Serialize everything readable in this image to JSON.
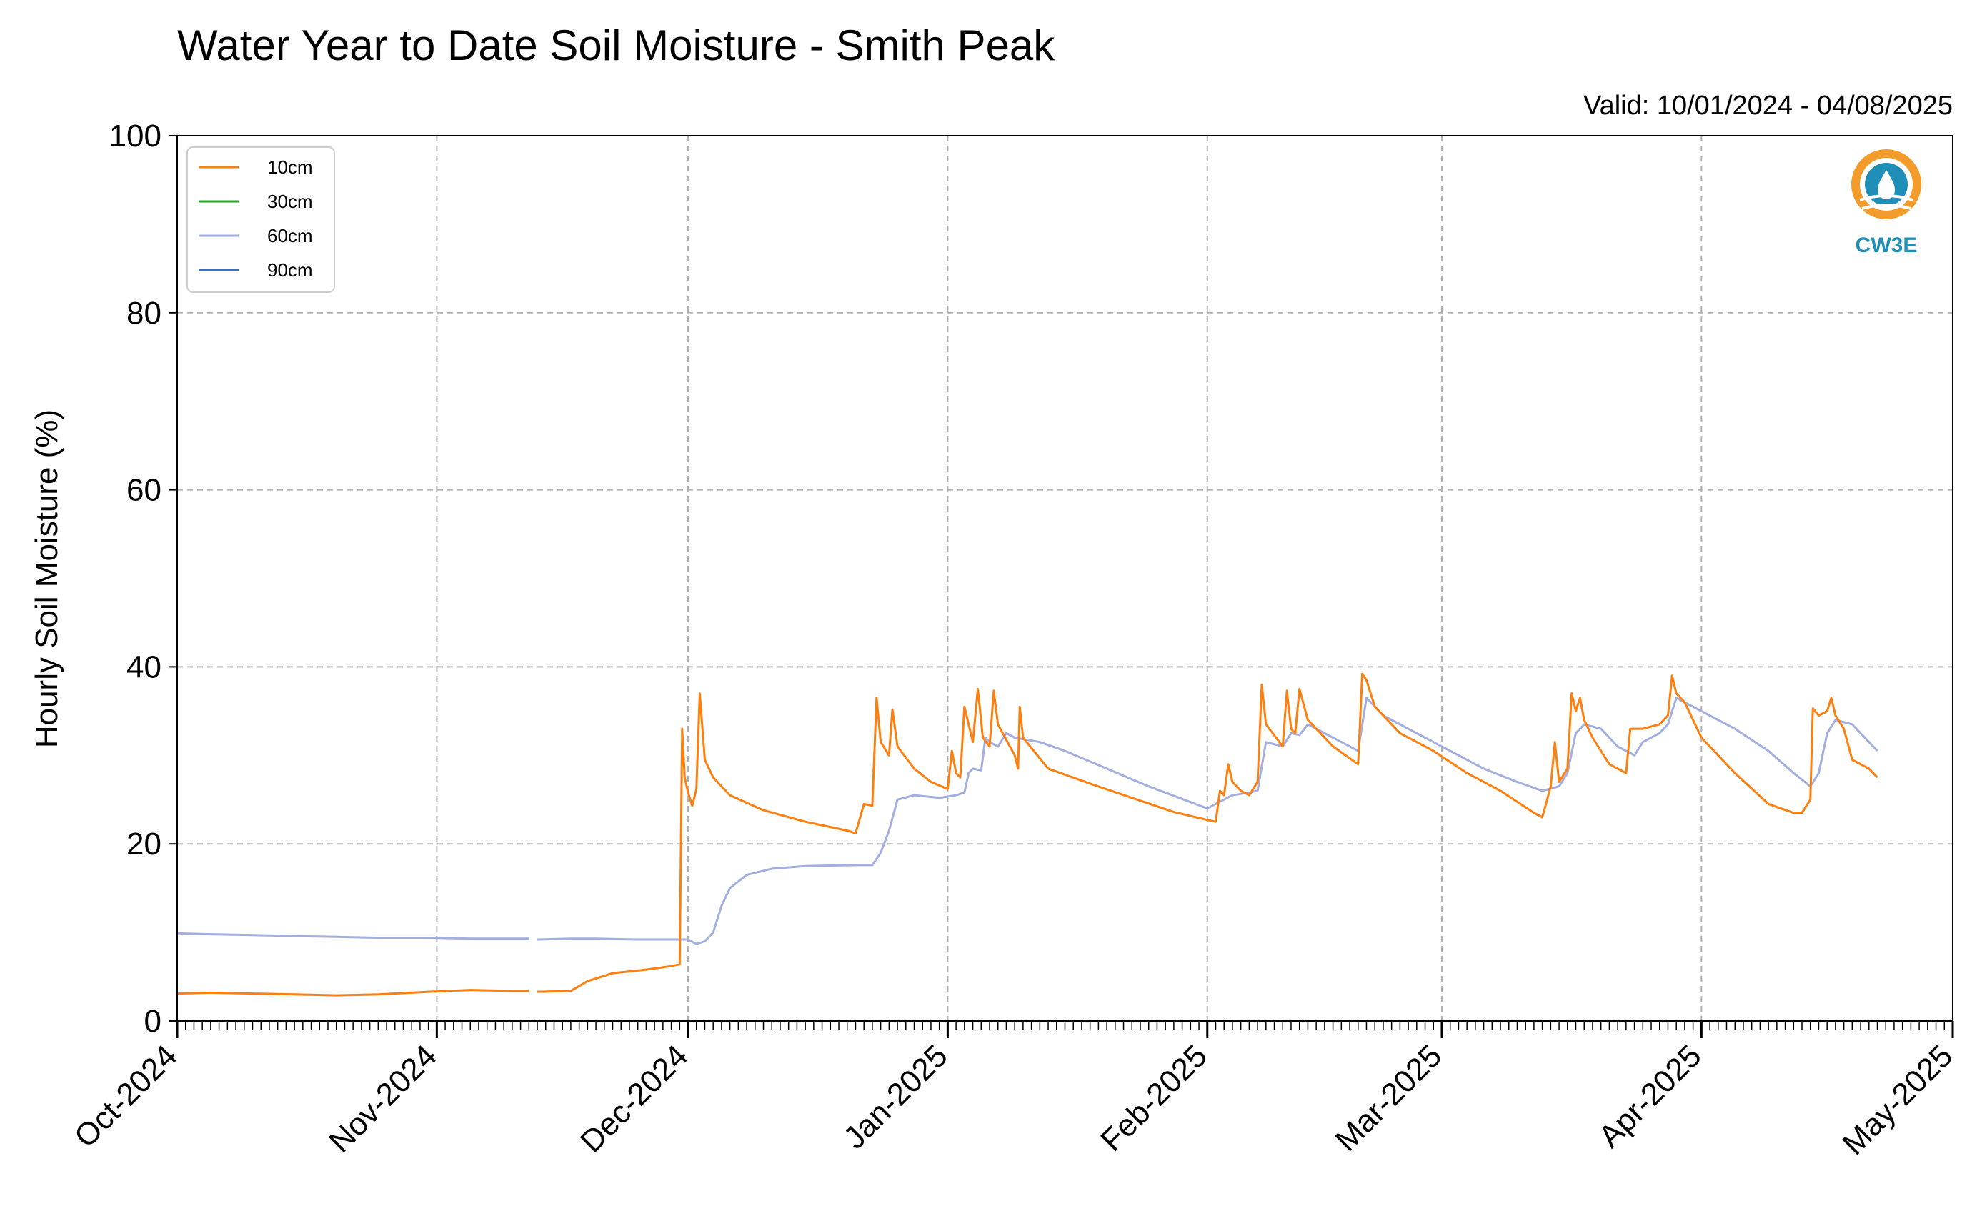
{
  "chart_data": {
    "type": "line",
    "title": "Water Year to Date Soil Moisture - Smith Peak",
    "subtitle": "Valid: 10/01/2024 - 04/08/2025",
    "xlabel": "",
    "ylabel": "Hourly Soil Moisture (%)",
    "ylim": [
      0,
      100
    ],
    "xlim": [
      "2024-10-01",
      "2025-05-01"
    ],
    "yticks": [
      "0",
      "20",
      "40",
      "60",
      "80",
      "100"
    ],
    "xticks": [
      "Oct-2024",
      "Nov-2024",
      "Dec-2024",
      "Jan-2025",
      "Feb-2025",
      "Mar-2025",
      "Apr-2025",
      "May-2025"
    ],
    "grid": true,
    "legend_position": "top-left",
    "series": [
      {
        "name": "10cm",
        "color": "#ff7f0e",
        "points": [
          [
            "2024-10-01",
            3.1
          ],
          [
            "2024-10-05",
            3.2
          ],
          [
            "2024-10-10",
            3.1
          ],
          [
            "2024-10-15",
            3.0
          ],
          [
            "2024-10-20",
            2.9
          ],
          [
            "2024-10-25",
            3.0
          ],
          [
            "2024-10-31",
            3.3
          ],
          [
            "2024-11-05",
            3.5
          ],
          [
            "2024-11-10",
            3.4
          ],
          [
            "2024-11-12",
            3.4
          ],
          null,
          [
            "2024-11-13",
            3.3
          ],
          [
            "2024-11-17",
            3.4
          ],
          [
            "2024-11-19",
            4.5
          ],
          [
            "2024-11-22",
            5.4
          ],
          [
            "2024-11-26",
            5.8
          ],
          [
            "2024-11-29",
            6.2
          ],
          [
            "2024-11-30",
            6.4
          ],
          [
            "2024-11-30.3",
            33.0
          ],
          [
            "2024-11-30.6",
            27.5
          ],
          [
            "2024-12-01",
            25.8
          ],
          [
            "2024-12-01.5",
            24.3
          ],
          [
            "2024-12-02",
            26.2
          ],
          [
            "2024-12-02.4",
            37.0
          ],
          [
            "2024-12-03",
            29.5
          ],
          [
            "2024-12-04",
            27.5
          ],
          [
            "2024-12-06",
            25.5
          ],
          [
            "2024-12-10",
            23.8
          ],
          [
            "2024-12-15",
            22.5
          ],
          [
            "2024-12-20",
            21.5
          ],
          [
            "2024-12-21",
            21.2
          ],
          [
            "2024-12-22",
            24.5
          ],
          [
            "2024-12-23",
            24.3
          ],
          [
            "2024-12-23.5",
            36.5
          ],
          [
            "2024-12-24",
            31.5
          ],
          [
            "2024-12-25",
            30.0
          ],
          [
            "2024-12-25.4",
            35.2
          ],
          [
            "2024-12-26",
            31.0
          ],
          [
            "2024-12-28",
            28.5
          ],
          [
            "2024-12-30",
            27.0
          ],
          [
            "2025-01-01",
            26.2
          ],
          [
            "2025-01-01.5",
            30.5
          ],
          [
            "2025-01-02",
            28.0
          ],
          [
            "2025-01-02.5",
            27.5
          ],
          [
            "2025-01-03",
            35.5
          ],
          [
            "2025-01-04",
            31.5
          ],
          [
            "2025-01-04.6",
            37.5
          ],
          [
            "2025-01-05.2",
            32.0
          ],
          [
            "2025-01-06",
            31.0
          ],
          [
            "2025-01-06.5",
            37.3
          ],
          [
            "2025-01-07",
            33.5
          ],
          [
            "2025-01-09",
            30.0
          ],
          [
            "2025-01-09.4",
            28.5
          ],
          [
            "2025-01-09.6",
            35.5
          ],
          [
            "2025-01-10",
            32.0
          ],
          [
            "2025-01-13",
            28.5
          ],
          [
            "2025-01-18",
            26.8
          ],
          [
            "2025-01-23",
            25.2
          ],
          [
            "2025-01-28",
            23.6
          ],
          [
            "2025-02-01",
            22.7
          ],
          [
            "2025-02-02",
            22.5
          ],
          [
            "2025-02-02.5",
            26.0
          ],
          [
            "2025-02-03",
            25.5
          ],
          [
            "2025-02-03.5",
            29.0
          ],
          [
            "2025-02-04",
            27.0
          ],
          [
            "2025-02-05",
            26.0
          ],
          [
            "2025-02-06",
            25.5
          ],
          [
            "2025-02-07",
            27.0
          ],
          [
            "2025-02-07.5",
            38.0
          ],
          [
            "2025-02-08",
            33.5
          ],
          [
            "2025-02-10",
            31.0
          ],
          [
            "2025-02-10.5",
            37.3
          ],
          [
            "2025-02-11",
            33.0
          ],
          [
            "2025-02-11.5",
            32.5
          ],
          [
            "2025-02-12",
            37.5
          ],
          [
            "2025-02-13",
            34.0
          ],
          [
            "2025-02-16",
            31.0
          ],
          [
            "2025-02-19",
            29.0
          ],
          [
            "2025-02-19.5",
            39.2
          ],
          [
            "2025-02-20",
            38.5
          ],
          [
            "2025-02-21",
            35.5
          ],
          [
            "2025-02-24",
            32.5
          ],
          [
            "2025-02-28",
            30.5
          ],
          [
            "2025-03-04",
            28.0
          ],
          [
            "2025-03-08",
            26.0
          ],
          [
            "2025-03-12",
            23.5
          ],
          [
            "2025-03-13",
            23.0
          ],
          [
            "2025-03-14",
            26.5
          ],
          [
            "2025-03-14.5",
            31.5
          ],
          [
            "2025-03-15",
            27.0
          ],
          [
            "2025-03-16",
            28.5
          ],
          [
            "2025-03-16.5",
            37.0
          ],
          [
            "2025-03-17",
            35.0
          ],
          [
            "2025-03-17.5",
            36.5
          ],
          [
            "2025-03-18",
            34.0
          ],
          [
            "2025-03-19",
            32.0
          ],
          [
            "2025-03-21",
            29.0
          ],
          [
            "2025-03-23",
            28.0
          ],
          [
            "2025-03-23.5",
            33.0
          ],
          [
            "2025-03-25",
            33.0
          ],
          [
            "2025-03-27",
            33.5
          ],
          [
            "2025-03-28",
            34.5
          ],
          [
            "2025-03-28.5",
            39.0
          ],
          [
            "2025-03-29",
            37.0
          ],
          [
            "2025-03-30",
            36.0
          ],
          [
            "2025-04-01",
            32.0
          ],
          [
            "2025-04-05",
            28.0
          ],
          [
            "2025-04-09",
            24.5
          ],
          [
            "2025-04-12",
            23.5
          ],
          [
            "2025-04-13",
            23.5
          ],
          [
            "2025-04-14",
            25.0
          ],
          [
            "2025-04-14.3",
            35.3
          ],
          [
            "2025-04-15",
            34.5
          ],
          [
            "2025-04-16",
            35.0
          ],
          [
            "2025-04-16.5",
            36.5
          ],
          [
            "2025-04-17",
            34.5
          ],
          [
            "2025-04-18",
            33.0
          ],
          [
            "2025-04-19",
            29.5
          ],
          [
            "2025-04-21",
            28.5
          ],
          [
            "2025-04-22",
            27.5
          ]
        ]
      },
      {
        "name": "30cm",
        "color": "#2ca02c",
        "points": []
      },
      {
        "name": "60cm",
        "color": "#a3aee0",
        "points": [
          [
            "2024-10-01",
            9.9
          ],
          [
            "2024-10-05",
            9.8
          ],
          [
            "2024-10-10",
            9.7
          ],
          [
            "2024-10-15",
            9.6
          ],
          [
            "2024-10-20",
            9.5
          ],
          [
            "2024-10-25",
            9.4
          ],
          [
            "2024-10-31",
            9.4
          ],
          [
            "2024-11-05",
            9.3
          ],
          [
            "2024-11-10",
            9.3
          ],
          [
            "2024-11-12",
            9.3
          ],
          null,
          [
            "2024-11-13",
            9.2
          ],
          [
            "2024-11-17",
            9.3
          ],
          [
            "2024-11-20",
            9.3
          ],
          [
            "2024-11-25",
            9.2
          ],
          [
            "2024-12-01",
            9.2
          ],
          [
            "2024-12-02",
            8.7
          ],
          [
            "2024-12-03",
            9.0
          ],
          [
            "2024-12-04",
            10.0
          ],
          [
            "2024-12-05",
            13.0
          ],
          [
            "2024-12-06",
            15.0
          ],
          [
            "2024-12-08",
            16.5
          ],
          [
            "2024-12-11",
            17.2
          ],
          [
            "2024-12-15",
            17.5
          ],
          [
            "2024-12-21",
            17.6
          ],
          [
            "2024-12-23",
            17.6
          ],
          [
            "2024-12-24",
            19.0
          ],
          [
            "2024-12-25",
            21.5
          ],
          [
            "2024-12-26",
            25.0
          ],
          [
            "2024-12-28",
            25.5
          ],
          [
            "2024-12-31",
            25.2
          ],
          [
            "2025-01-02",
            25.5
          ],
          [
            "2025-01-03",
            25.8
          ],
          [
            "2025-01-03.5",
            28.0
          ],
          [
            "2025-01-04",
            28.5
          ],
          [
            "2025-01-05",
            28.3
          ],
          [
            "2025-01-05.5",
            32.0
          ],
          [
            "2025-01-06",
            31.5
          ],
          [
            "2025-01-07",
            31.0
          ],
          [
            "2025-01-08",
            32.5
          ],
          [
            "2025-01-09",
            32.0
          ],
          [
            "2025-01-12",
            31.5
          ],
          [
            "2025-01-15",
            30.5
          ],
          [
            "2025-01-20",
            28.5
          ],
          [
            "2025-01-25",
            26.5
          ],
          [
            "2025-02-01",
            24.0
          ],
          [
            "2025-02-04",
            25.5
          ],
          [
            "2025-02-06",
            25.8
          ],
          [
            "2025-02-07",
            26.0
          ],
          [
            "2025-02-08",
            31.5
          ],
          [
            "2025-02-10",
            31.0
          ],
          [
            "2025-02-11",
            32.5
          ],
          [
            "2025-02-12",
            32.3
          ],
          [
            "2025-02-13",
            33.5
          ],
          [
            "2025-02-15",
            32.5
          ],
          [
            "2025-02-19",
            30.5
          ],
          [
            "2025-02-20",
            36.5
          ],
          [
            "2025-02-22",
            34.5
          ],
          [
            "2025-02-26",
            32.5
          ],
          [
            "2025-03-02",
            30.5
          ],
          [
            "2025-03-06",
            28.5
          ],
          [
            "2025-03-10",
            27.0
          ],
          [
            "2025-03-13",
            26.0
          ],
          [
            "2025-03-15",
            26.5
          ],
          [
            "2025-03-16",
            28.0
          ],
          [
            "2025-03-17",
            32.5
          ],
          [
            "2025-03-18",
            33.5
          ],
          [
            "2025-03-20",
            33.0
          ],
          [
            "2025-03-22",
            31.0
          ],
          [
            "2025-03-24",
            30.0
          ],
          [
            "2025-03-25",
            31.5
          ],
          [
            "2025-03-27",
            32.5
          ],
          [
            "2025-03-28",
            33.5
          ],
          [
            "2025-03-29",
            36.5
          ],
          [
            "2025-04-01",
            35.0
          ],
          [
            "2025-04-05",
            33.0
          ],
          [
            "2025-04-09",
            30.5
          ],
          [
            "2025-04-12",
            28.0
          ],
          [
            "2025-04-14",
            26.5
          ],
          [
            "2025-04-15",
            28.0
          ],
          [
            "2025-04-16",
            32.5
          ],
          [
            "2025-04-17",
            34.0
          ],
          [
            "2025-04-19",
            33.5
          ],
          [
            "2025-04-21",
            31.5
          ],
          [
            "2025-04-22",
            30.5
          ]
        ]
      },
      {
        "name": "90cm",
        "color": "#3a6fc2",
        "points": []
      }
    ]
  },
  "logo": {
    "text": "CW3E",
    "accent": "#f39c2c",
    "brand": "#1f8fb8"
  }
}
